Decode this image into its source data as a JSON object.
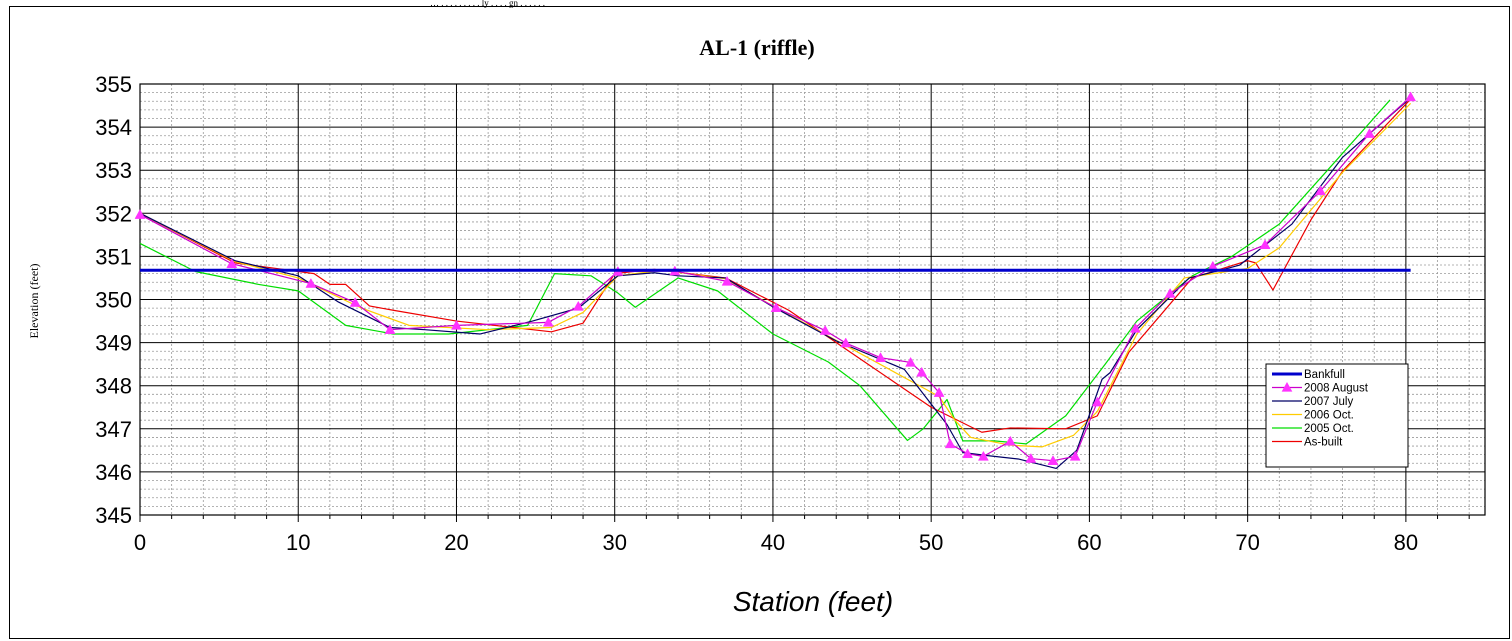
{
  "header_note": "… . . . . . . . . . ly . . . . gn . . . . . .",
  "star_mark": "*",
  "chart_data": {
    "type": "line",
    "title": "AL-1  (riffle)",
    "xlabel": "Station (feet)",
    "ylabel": "Elevation (feet)",
    "xlim": [
      0,
      85
    ],
    "ylim": [
      345,
      355
    ],
    "xticks": [
      0,
      10,
      20,
      30,
      40,
      50,
      60,
      70,
      80
    ],
    "yticks": [
      345,
      346,
      347,
      348,
      349,
      350,
      351,
      352,
      353,
      354,
      355
    ],
    "xtick_labels": [
      "0",
      "10",
      "20",
      "30",
      "40",
      "50",
      "60",
      "70",
      "80"
    ],
    "ytick_labels": [
      "345",
      "346",
      "347",
      "348",
      "349",
      "350",
      "351",
      "352",
      "353",
      "354",
      "355"
    ],
    "grid": true,
    "legend_position": "right",
    "series": [
      {
        "name": "Bankfull",
        "color": "#0000cc",
        "width": 3,
        "marker": "none",
        "x": [
          0,
          80.3
        ],
        "y": [
          350.68,
          350.68
        ]
      },
      {
        "name": "2008 August",
        "color": "#cc00cc",
        "width": 1.2,
        "marker": "triangle",
        "marker_color": "#ff33ff",
        "x": [
          0,
          5.8,
          10.8,
          13.6,
          15.8,
          20.0,
          25.8,
          27.7,
          30.2,
          33.8,
          37.1,
          40.2,
          43.3,
          44.6,
          46.8,
          48.7,
          49.4,
          50.5,
          51.2,
          52.3,
          53.3,
          55.0,
          56.3,
          57.7,
          59.1,
          60.5,
          62.9,
          65.1,
          67.8,
          71.1,
          74.6,
          77.7,
          80.3
        ],
        "y": [
          351.97,
          350.83,
          350.37,
          349.93,
          349.3,
          349.4,
          349.47,
          349.84,
          350.65,
          350.66,
          350.42,
          349.81,
          349.28,
          348.99,
          348.65,
          348.54,
          348.31,
          347.84,
          346.65,
          346.42,
          346.36,
          346.71,
          346.31,
          346.26,
          346.36,
          347.62,
          349.33,
          350.14,
          350.77,
          351.27,
          352.52,
          353.85,
          354.7
        ]
      },
      {
        "name": "2007 July",
        "color": "#000066",
        "width": 1.2,
        "marker": "none",
        "x": [
          0,
          6,
          10,
          12.5,
          15.8,
          18,
          21.5,
          24.8,
          27.7,
          30.2,
          32.5,
          34,
          37,
          40,
          44,
          48.3,
          51.0,
          52,
          53.5,
          55.5,
          57.9,
          59.2,
          60.8,
          61.3,
          63,
          66.3,
          68.3,
          69.5,
          72.8,
          76,
          80.3
        ],
        "y": [
          352.0,
          350.9,
          350.55,
          349.95,
          349.35,
          349.3,
          349.2,
          349.5,
          349.8,
          350.55,
          350.62,
          350.55,
          350.5,
          349.83,
          349.04,
          348.38,
          347.1,
          346.45,
          346.38,
          346.3,
          346.08,
          346.5,
          348.15,
          348.3,
          349.3,
          350.5,
          350.68,
          350.8,
          351.75,
          353.3,
          354.68
        ]
      },
      {
        "name": "2006 Oct.",
        "color": "#ffcc00",
        "width": 1.2,
        "marker": "none",
        "x": [
          0,
          6,
          10,
          14,
          17,
          22,
          26,
          28,
          30.2,
          33,
          37,
          40,
          44,
          48,
          50.5,
          51.5,
          52.5,
          55,
          57,
          59,
          60.5,
          63,
          66,
          70,
          72,
          76,
          80.3
        ],
        "y": [
          352.0,
          350.88,
          350.5,
          349.8,
          349.4,
          349.3,
          349.35,
          349.7,
          350.55,
          350.68,
          350.48,
          349.85,
          349.05,
          348.25,
          347.75,
          347.2,
          346.8,
          346.62,
          346.58,
          346.85,
          347.4,
          349.2,
          350.5,
          350.72,
          351.2,
          352.95,
          354.55
        ]
      },
      {
        "name": "2005 Oct.",
        "color": "#00dd00",
        "width": 1.2,
        "marker": "none",
        "x": [
          0,
          3.5,
          7.5,
          10,
          13,
          16,
          19.5,
          24.5,
          26.2,
          28.5,
          30.2,
          31.3,
          34,
          36.5,
          40,
          43.5,
          45.5,
          48.5,
          49.5,
          51,
          52,
          54,
          56,
          58.5,
          61,
          63,
          66.5,
          69,
          72,
          75,
          79
        ],
        "y": [
          351.3,
          350.65,
          350.35,
          350.2,
          349.4,
          349.2,
          349.2,
          349.4,
          350.6,
          350.55,
          350.15,
          349.82,
          350.5,
          350.2,
          349.2,
          348.55,
          348.0,
          346.73,
          347.0,
          347.68,
          346.72,
          346.72,
          346.65,
          347.3,
          348.5,
          349.5,
          350.55,
          351.0,
          351.75,
          352.98,
          354.63
        ]
      },
      {
        "name": "As-built",
        "color": "#ee0000",
        "width": 1.2,
        "marker": "none",
        "x": [
          0,
          6,
          11,
          12,
          13,
          14.5,
          16,
          20,
          26,
          28,
          30,
          32.5,
          37,
          41,
          46,
          50,
          53.2,
          55,
          58.5,
          60.5,
          62.5,
          66.5,
          70,
          70.5,
          71.6,
          74,
          76,
          80.3
        ],
        "y": [
          352.0,
          350.85,
          350.6,
          350.35,
          350.35,
          349.85,
          349.75,
          349.5,
          349.25,
          349.45,
          350.6,
          350.7,
          350.5,
          349.75,
          348.5,
          347.5,
          346.92,
          347.02,
          347.0,
          347.3,
          348.78,
          350.5,
          350.9,
          350.85,
          350.22,
          351.85,
          352.98,
          354.65
        ]
      }
    ]
  }
}
